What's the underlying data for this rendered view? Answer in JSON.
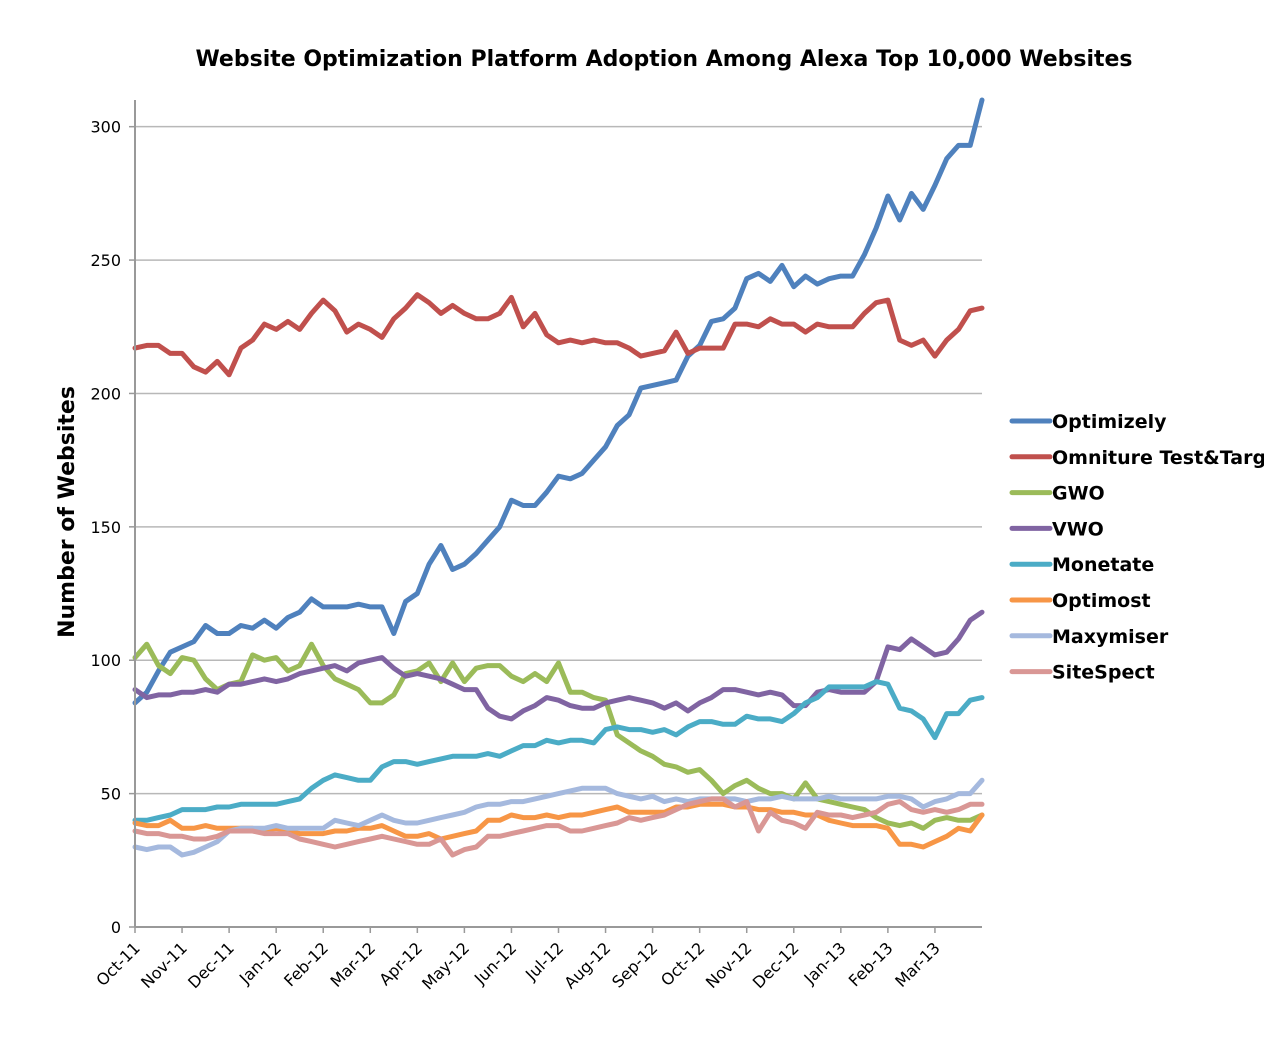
{
  "chart_data": {
    "type": "line",
    "title": "Website Optimization Platform Adoption Among Alexa Top 10,000 Websites",
    "xlabel": "",
    "ylabel": "Number of Websites",
    "ylim": [
      0,
      310
    ],
    "yticks": [
      0,
      50,
      100,
      150,
      200,
      250,
      300
    ],
    "xticks": [
      "Oct-11",
      "Nov-11",
      "Dec-11",
      "Jan-12",
      "Feb-12",
      "Mar-12",
      "Apr-12",
      "May-12",
      "Jun-12",
      "Jul-12",
      "Aug-12",
      "Sep-12",
      "Oct-12",
      "Nov-12",
      "Dec-12",
      "Jan-13",
      "Feb-13",
      "Mar-13"
    ],
    "xlim": [
      0,
      18
    ],
    "grid": "horizontal",
    "legend_position": "right",
    "series": [
      {
        "name": "Optimizely",
        "color": "#4F81BD",
        "x": [
          0,
          0.25,
          0.5,
          0.75,
          1,
          1.25,
          1.5,
          1.75,
          2,
          2.25,
          2.5,
          2.75,
          3,
          3.25,
          3.5,
          3.75,
          4,
          4.25,
          4.5,
          4.75,
          5,
          5.25,
          5.5,
          5.75,
          6,
          6.25,
          6.5,
          6.75,
          7,
          7.25,
          7.5,
          7.75,
          8,
          8.25,
          8.5,
          8.75,
          9,
          9.25,
          9.5,
          9.75,
          10,
          10.25,
          10.5,
          10.75,
          11,
          11.25,
          11.5,
          11.75,
          12,
          12.25,
          12.5,
          12.75,
          13,
          13.25,
          13.5,
          13.75,
          14,
          14.25,
          14.5,
          14.75,
          15,
          15.25,
          15.5,
          15.75,
          16,
          16.25,
          16.5,
          16.75,
          17,
          17.25,
          17.5,
          17.75,
          18
        ],
        "y": [
          84,
          88,
          96,
          103,
          105,
          107,
          113,
          110,
          110,
          113,
          112,
          115,
          112,
          116,
          118,
          123,
          120,
          120,
          120,
          121,
          120,
          120,
          110,
          122,
          125,
          136,
          143,
          134,
          136,
          140,
          145,
          150,
          160,
          158,
          158,
          163,
          169,
          168,
          170,
          175,
          180,
          188,
          192,
          202,
          203,
          204,
          205,
          214,
          218,
          227,
          228,
          232,
          243,
          245,
          242,
          248,
          240,
          244,
          241,
          243,
          244,
          244,
          252,
          262,
          274,
          265,
          275,
          269,
          278,
          288,
          293,
          293,
          310
        ]
      },
      {
        "name": "Omniture Test&Targ",
        "color": "#C0504D",
        "x": [
          0,
          0.25,
          0.5,
          0.75,
          1,
          1.25,
          1.5,
          1.75,
          2,
          2.25,
          2.5,
          2.75,
          3,
          3.25,
          3.5,
          3.75,
          4,
          4.25,
          4.5,
          4.75,
          5,
          5.25,
          5.5,
          5.75,
          6,
          6.25,
          6.5,
          6.75,
          7,
          7.25,
          7.5,
          7.75,
          8,
          8.25,
          8.5,
          8.75,
          9,
          9.25,
          9.5,
          9.75,
          10,
          10.25,
          10.5,
          10.75,
          11,
          11.25,
          11.5,
          11.75,
          12,
          12.25,
          12.5,
          12.75,
          13,
          13.25,
          13.5,
          13.75,
          14,
          14.25,
          14.5,
          14.75,
          15,
          15.25,
          15.5,
          15.75,
          16,
          16.25,
          16.5,
          16.75,
          17,
          17.25,
          17.5,
          17.75,
          18
        ],
        "y": [
          217,
          218,
          218,
          215,
          215,
          210,
          208,
          212,
          207,
          217,
          220,
          226,
          224,
          227,
          224,
          230,
          235,
          231,
          223,
          226,
          224,
          221,
          228,
          232,
          237,
          234,
          230,
          233,
          230,
          228,
          228,
          230,
          236,
          225,
          230,
          222,
          219,
          220,
          219,
          220,
          219,
          219,
          217,
          214,
          215,
          216,
          223,
          215,
          217,
          217,
          217,
          226,
          226,
          225,
          228,
          226,
          226,
          223,
          226,
          225,
          225,
          225,
          230,
          234,
          235,
          220,
          218,
          220,
          214,
          220,
          224,
          231,
          232
        ]
      },
      {
        "name": "GWO",
        "color": "#9BBB59",
        "x": [
          0,
          0.25,
          0.5,
          0.75,
          1,
          1.25,
          1.5,
          1.75,
          2,
          2.25,
          2.5,
          2.75,
          3,
          3.25,
          3.5,
          3.75,
          4,
          4.25,
          4.5,
          4.75,
          5,
          5.25,
          5.5,
          5.75,
          6,
          6.25,
          6.5,
          6.75,
          7,
          7.25,
          7.5,
          7.75,
          8,
          8.25,
          8.5,
          8.75,
          9,
          9.25,
          9.5,
          9.75,
          10,
          10.25,
          10.5,
          10.75,
          11,
          11.25,
          11.5,
          11.75,
          12,
          12.25,
          12.5,
          12.75,
          13,
          13.25,
          13.5,
          13.75,
          14,
          14.25,
          14.5,
          14.75,
          15,
          15.25,
          15.5,
          15.75,
          16,
          16.25,
          16.5,
          16.75,
          17,
          17.25,
          17.5,
          17.75,
          18
        ],
        "y": [
          101,
          106,
          98,
          95,
          101,
          100,
          93,
          89,
          91,
          92,
          102,
          100,
          101,
          96,
          98,
          106,
          98,
          93,
          91,
          89,
          84,
          84,
          87,
          95,
          96,
          99,
          92,
          99,
          92,
          97,
          98,
          98,
          94,
          92,
          95,
          92,
          99,
          88,
          88,
          86,
          85,
          72,
          69,
          66,
          64,
          61,
          60,
          58,
          59,
          55,
          50,
          53,
          55,
          52,
          50,
          50,
          48,
          54,
          48,
          47,
          46,
          45,
          44,
          41,
          39,
          38,
          39,
          37,
          40,
          41,
          40,
          40,
          42
        ]
      },
      {
        "name": "VWO",
        "color": "#8064A2",
        "x": [
          0,
          0.25,
          0.5,
          0.75,
          1,
          1.25,
          1.5,
          1.75,
          2,
          2.25,
          2.5,
          2.75,
          3,
          3.25,
          3.5,
          3.75,
          4,
          4.25,
          4.5,
          4.75,
          5,
          5.25,
          5.5,
          5.75,
          6,
          6.25,
          6.5,
          6.75,
          7,
          7.25,
          7.5,
          7.75,
          8,
          8.25,
          8.5,
          8.75,
          9,
          9.25,
          9.5,
          9.75,
          10,
          10.25,
          10.5,
          10.75,
          11,
          11.25,
          11.5,
          11.75,
          12,
          12.25,
          12.5,
          12.75,
          13,
          13.25,
          13.5,
          13.75,
          14,
          14.25,
          14.5,
          14.75,
          15,
          15.25,
          15.5,
          15.75,
          16,
          16.25,
          16.5,
          16.75,
          17,
          17.25,
          17.5,
          17.75,
          18
        ],
        "y": [
          89,
          86,
          87,
          87,
          88,
          88,
          89,
          88,
          91,
          91,
          92,
          93,
          92,
          93,
          95,
          96,
          97,
          98,
          96,
          99,
          100,
          101,
          97,
          94,
          95,
          94,
          93,
          91,
          89,
          89,
          82,
          79,
          78,
          81,
          83,
          86,
          85,
          83,
          82,
          82,
          84,
          85,
          86,
          85,
          84,
          82,
          84,
          81,
          84,
          86,
          89,
          89,
          88,
          87,
          88,
          87,
          83,
          83,
          88,
          89,
          88,
          88,
          88,
          92,
          105,
          104,
          108,
          105,
          102,
          103,
          108,
          115,
          118
        ]
      },
      {
        "name": "Monetate",
        "color": "#4BACC6",
        "x": [
          0,
          0.25,
          0.5,
          0.75,
          1,
          1.25,
          1.5,
          1.75,
          2,
          2.25,
          2.5,
          2.75,
          3,
          3.25,
          3.5,
          3.75,
          4,
          4.25,
          4.5,
          4.75,
          5,
          5.25,
          5.5,
          5.75,
          6,
          6.25,
          6.5,
          6.75,
          7,
          7.25,
          7.5,
          7.75,
          8,
          8.25,
          8.5,
          8.75,
          9,
          9.25,
          9.5,
          9.75,
          10,
          10.25,
          10.5,
          10.75,
          11,
          11.25,
          11.5,
          11.75,
          12,
          12.25,
          12.5,
          12.75,
          13,
          13.25,
          13.5,
          13.75,
          14,
          14.25,
          14.5,
          14.75,
          15,
          15.25,
          15.5,
          15.75,
          16,
          16.25,
          16.5,
          16.75,
          17,
          17.25,
          17.5,
          17.75,
          18
        ],
        "y": [
          40,
          40,
          41,
          42,
          44,
          44,
          44,
          45,
          45,
          46,
          46,
          46,
          46,
          47,
          48,
          52,
          55,
          57,
          56,
          55,
          55,
          60,
          62,
          62,
          61,
          62,
          63,
          64,
          64,
          64,
          65,
          64,
          66,
          68,
          68,
          70,
          69,
          70,
          70,
          69,
          74,
          75,
          74,
          74,
          73,
          74,
          72,
          75,
          77,
          77,
          76,
          76,
          79,
          78,
          78,
          77,
          80,
          84,
          86,
          90,
          90,
          90,
          90,
          92,
          91,
          82,
          81,
          78,
          71,
          80,
          80,
          85,
          86
        ]
      },
      {
        "name": "Optimost",
        "color": "#F79646",
        "x": [
          0,
          0.25,
          0.5,
          0.75,
          1,
          1.25,
          1.5,
          1.75,
          2,
          2.25,
          2.5,
          2.75,
          3,
          3.25,
          3.5,
          3.75,
          4,
          4.25,
          4.5,
          4.75,
          5,
          5.25,
          5.5,
          5.75,
          6,
          6.25,
          6.5,
          6.75,
          7,
          7.25,
          7.5,
          7.75,
          8,
          8.25,
          8.5,
          8.75,
          9,
          9.25,
          9.5,
          9.75,
          10,
          10.25,
          10.5,
          10.75,
          11,
          11.25,
          11.5,
          11.75,
          12,
          12.25,
          12.5,
          12.75,
          13,
          13.25,
          13.5,
          13.75,
          14,
          14.25,
          14.5,
          14.75,
          15,
          15.25,
          15.5,
          15.75,
          16,
          16.25,
          16.5,
          16.75,
          17,
          17.25,
          17.5,
          17.75,
          18
        ],
        "y": [
          39,
          38,
          38,
          40,
          37,
          37,
          38,
          37,
          37,
          37,
          37,
          36,
          37,
          36,
          35,
          35,
          35,
          36,
          36,
          37,
          37,
          38,
          36,
          34,
          34,
          35,
          33,
          34,
          35,
          36,
          40,
          40,
          42,
          41,
          41,
          42,
          41,
          42,
          42,
          43,
          44,
          45,
          43,
          43,
          43,
          43,
          45,
          45,
          46,
          46,
          46,
          45,
          45,
          44,
          44,
          43,
          43,
          42,
          42,
          40,
          39,
          38,
          38,
          38,
          37,
          31,
          31,
          30,
          32,
          34,
          37,
          36,
          42
        ]
      },
      {
        "name": "Maxymiser",
        "color": "#A5B9DE",
        "x": [
          0,
          0.25,
          0.5,
          0.75,
          1,
          1.25,
          1.5,
          1.75,
          2,
          2.25,
          2.5,
          2.75,
          3,
          3.25,
          3.5,
          3.75,
          4,
          4.25,
          4.5,
          4.75,
          5,
          5.25,
          5.5,
          5.75,
          6,
          6.25,
          6.5,
          6.75,
          7,
          7.25,
          7.5,
          7.75,
          8,
          8.25,
          8.5,
          8.75,
          9,
          9.25,
          9.5,
          9.75,
          10,
          10.25,
          10.5,
          10.75,
          11,
          11.25,
          11.5,
          11.75,
          12,
          12.25,
          12.5,
          12.75,
          13,
          13.25,
          13.5,
          13.75,
          14,
          14.25,
          14.5,
          14.75,
          15,
          15.25,
          15.5,
          15.75,
          16,
          16.25,
          16.5,
          16.75,
          17,
          17.25,
          17.5,
          17.75,
          18
        ],
        "y": [
          30,
          29,
          30,
          30,
          27,
          28,
          30,
          32,
          36,
          37,
          37,
          37,
          38,
          37,
          37,
          37,
          37,
          40,
          39,
          38,
          40,
          42,
          40,
          39,
          39,
          40,
          41,
          42,
          43,
          45,
          46,
          46,
          47,
          47,
          48,
          49,
          50,
          51,
          52,
          52,
          52,
          50,
          49,
          48,
          49,
          47,
          48,
          47,
          48,
          48,
          48,
          48,
          47,
          48,
          48,
          49,
          48,
          48,
          48,
          49,
          48,
          48,
          48,
          48,
          49,
          49,
          48,
          45,
          47,
          48,
          50,
          50,
          55
        ]
      },
      {
        "name": "SiteSpect",
        "color": "#D99795",
        "x": [
          0,
          0.25,
          0.5,
          0.75,
          1,
          1.25,
          1.5,
          1.75,
          2,
          2.25,
          2.5,
          2.75,
          3,
          3.25,
          3.5,
          3.75,
          4,
          4.25,
          4.5,
          4.75,
          5,
          5.25,
          5.5,
          5.75,
          6,
          6.25,
          6.5,
          6.75,
          7,
          7.25,
          7.5,
          7.75,
          8,
          8.25,
          8.5,
          8.75,
          9,
          9.25,
          9.5,
          9.75,
          10,
          10.25,
          10.5,
          10.75,
          11,
          11.25,
          11.5,
          11.75,
          12,
          12.25,
          12.5,
          12.75,
          13,
          13.25,
          13.5,
          13.75,
          14,
          14.25,
          14.5,
          14.75,
          15,
          15.25,
          15.5,
          15.75,
          16,
          16.25,
          16.5,
          16.75,
          17,
          17.25,
          17.5,
          17.75,
          18
        ],
        "y": [
          36,
          35,
          35,
          34,
          34,
          33,
          33,
          34,
          36,
          36,
          36,
          35,
          35,
          35,
          33,
          32,
          31,
          30,
          31,
          32,
          33,
          34,
          33,
          32,
          31,
          31,
          33,
          27,
          29,
          30,
          34,
          34,
          35,
          36,
          37,
          38,
          38,
          36,
          36,
          37,
          38,
          39,
          41,
          40,
          41,
          42,
          44,
          46,
          47,
          48,
          48,
          45,
          47,
          36,
          43,
          40,
          39,
          37,
          43,
          42,
          42,
          41,
          42,
          43,
          46,
          47,
          44,
          43,
          44,
          43,
          44,
          46,
          46
        ]
      }
    ]
  }
}
